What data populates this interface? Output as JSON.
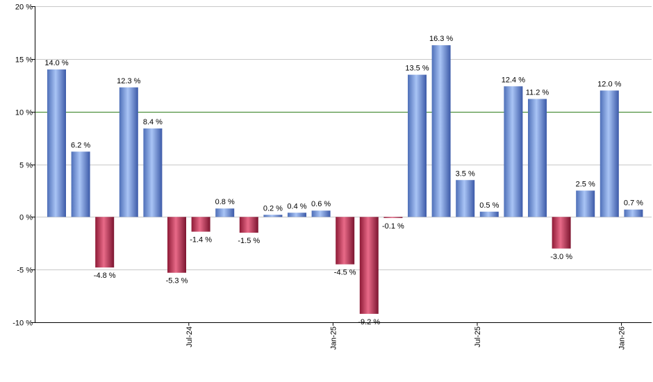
{
  "chart_data": {
    "type": "bar",
    "values": [
      14.0,
      6.2,
      -4.8,
      12.3,
      8.4,
      -5.3,
      -1.4,
      0.8,
      -1.5,
      0.2,
      0.4,
      0.6,
      -4.5,
      -9.2,
      -0.1,
      13.5,
      16.3,
      3.5,
      0.5,
      12.4,
      11.2,
      -3.0,
      2.5,
      12.0,
      0.7
    ],
    "value_labels": [
      "14.0 %",
      "6.2 %",
      "-4.8 %",
      "12.3 %",
      "8.4 %",
      "-5.3 %",
      "-1.4 %",
      "0.8 %",
      "-1.5 %",
      "0.2 %",
      "0.4 %",
      "0.6 %",
      "-4.5 %",
      "-9.2 %",
      "-0.1 %",
      "13.5 %",
      "16.3 %",
      "3.5 %",
      "0.5 %",
      "12.4 %",
      "11.2 %",
      "-3.0 %",
      "2.5 %",
      "12.0 %",
      "0.7 %"
    ],
    "x_tick_labels": [
      {
        "label": "Jul-24",
        "after_bar": 5
      },
      {
        "label": "Jan-25",
        "after_bar": 11
      },
      {
        "label": "Jul-25",
        "after_bar": 17
      },
      {
        "label": "Jan-26",
        "after_bar": 23
      }
    ],
    "y_ticks": [
      20,
      15,
      10,
      5,
      0,
      -5,
      -10
    ],
    "y_tick_labels": [
      "20 %",
      "15 %",
      "10 %",
      "5 %",
      "0 %",
      "-5 %",
      "-10 %"
    ],
    "ylim": [
      -10,
      20
    ],
    "reference_line": 10,
    "grid": true,
    "colors": {
      "positive": "#7b9de6",
      "negative": "#c5304f",
      "reference_line": "#2e7d1a",
      "grid": "#c8c8c8",
      "axis": "#000000"
    }
  }
}
